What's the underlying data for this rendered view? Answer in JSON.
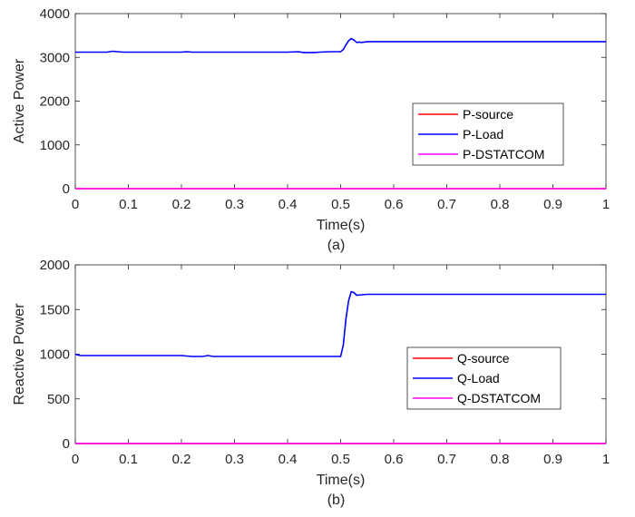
{
  "chart_data": [
    {
      "type": "line",
      "caption": "(a)",
      "xlabel": "Time(s)",
      "ylabel": "Active Power",
      "xlim": [
        0,
        1
      ],
      "ylim": [
        0,
        4000
      ],
      "xticks": [
        0,
        0.1,
        0.2,
        0.3,
        0.4,
        0.5,
        0.6,
        0.7,
        0.8,
        0.9,
        1
      ],
      "xtick_labels": [
        "0",
        "0.1",
        "0.2",
        "0.3",
        "0.4",
        "0.5",
        "0.6",
        "0.7",
        "0.8",
        "0.9",
        "1"
      ],
      "yticks": [
        0,
        1000,
        2000,
        3000,
        4000
      ],
      "ytick_labels": [
        "0",
        "1000",
        "2000",
        "3000",
        "4000"
      ],
      "legend_position": "lower-right",
      "series": [
        {
          "name": "P-source",
          "color": "#ff0000",
          "x": [
            0,
            1
          ],
          "y": [
            0,
            0
          ]
        },
        {
          "name": "P-Load",
          "color": "#0000ff",
          "x": [
            0,
            0.06,
            0.07,
            0.08,
            0.09,
            0.2,
            0.21,
            0.22,
            0.23,
            0.4,
            0.42,
            0.43,
            0.45,
            0.46,
            0.48,
            0.5,
            0.505,
            0.51,
            0.515,
            0.52,
            0.525,
            0.53,
            0.535,
            0.54,
            0.55,
            0.56,
            1
          ],
          "y": [
            3120,
            3120,
            3140,
            3130,
            3120,
            3120,
            3130,
            3120,
            3120,
            3120,
            3130,
            3110,
            3110,
            3120,
            3130,
            3130,
            3180,
            3290,
            3380,
            3430,
            3400,
            3340,
            3350,
            3340,
            3360,
            3360,
            3360
          ]
        },
        {
          "name": "P-DSTATCOM",
          "color": "#ff00ff",
          "x": [
            0,
            1
          ],
          "y": [
            0,
            0
          ]
        }
      ]
    },
    {
      "type": "line",
      "caption": "(b)",
      "xlabel": "Time(s)",
      "ylabel": "Reactive Power",
      "xlim": [
        0,
        1
      ],
      "ylim": [
        0,
        2000
      ],
      "xticks": [
        0,
        0.1,
        0.2,
        0.3,
        0.4,
        0.5,
        0.6,
        0.7,
        0.8,
        0.9,
        1
      ],
      "xtick_labels": [
        "0",
        "0.1",
        "0.2",
        "0.3",
        "0.4",
        "0.5",
        "0.6",
        "0.7",
        "0.8",
        "0.9",
        "1"
      ],
      "yticks": [
        0,
        500,
        1000,
        1500,
        2000
      ],
      "ytick_labels": [
        "0",
        "500",
        "1000",
        "1500",
        "2000"
      ],
      "legend_position": "lower-right",
      "series": [
        {
          "name": "Q-source",
          "color": "#ff0000",
          "x": [
            0,
            1
          ],
          "y": [
            0,
            0
          ]
        },
        {
          "name": "Q-Load",
          "color": "#0000ff",
          "x": [
            0,
            0.005,
            0.01,
            0.2,
            0.22,
            0.24,
            0.25,
            0.26,
            0.3,
            0.5,
            0.505,
            0.51,
            0.515,
            0.52,
            0.525,
            0.53,
            0.54,
            0.55,
            1
          ],
          "y": [
            1000,
            990,
            985,
            985,
            975,
            975,
            985,
            975,
            975,
            975,
            1100,
            1400,
            1600,
            1700,
            1690,
            1660,
            1665,
            1670,
            1670
          ]
        },
        {
          "name": "Q-DSTATCOM",
          "color": "#ff00ff",
          "x": [
            0,
            1
          ],
          "y": [
            0,
            0
          ]
        }
      ]
    }
  ]
}
